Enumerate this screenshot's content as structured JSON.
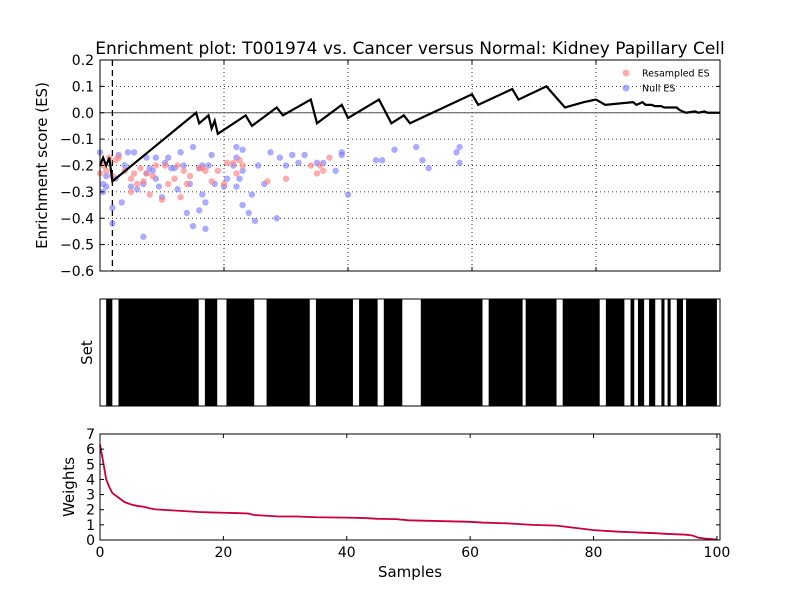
{
  "title": "Enrichment plot: T001974 vs. Cancer versus Normal: Kidney Papillary Cell",
  "colors": {
    "es_line": "#000000",
    "resampled": "#ff8080",
    "null": "#8080ff",
    "weights_line": "#c8003c",
    "set_bar": "#000000",
    "grid": "#000000"
  },
  "chart_data": [
    {
      "id": "enrichment",
      "type": "line",
      "ylabel": "Enrichment score (ES)",
      "xlim": [
        0,
        100
      ],
      "ylim": [
        -0.6,
        0.2
      ],
      "yticks": [
        "−0.6",
        "−0.5",
        "−0.4",
        "−0.3",
        "−0.2",
        "−0.1",
        "0.0",
        "0.1",
        "0.2"
      ],
      "ytick_values": [
        -0.6,
        -0.5,
        -0.4,
        -0.3,
        -0.2,
        -0.1,
        0.0,
        0.1,
        0.2
      ],
      "xtick_values": [
        0,
        20,
        40,
        60,
        80,
        100
      ],
      "grid": true,
      "zero_line": 0,
      "leading_edge_x": 2,
      "legend_position": "top-right",
      "legend": {
        "resampled": "Resampled ES",
        "null": "Null ES"
      },
      "es_points": [
        [
          0,
          -0.2
        ],
        [
          0.5,
          -0.17
        ],
        [
          1,
          -0.2
        ],
        [
          1.5,
          -0.17
        ],
        [
          2,
          -0.26
        ],
        [
          15.5,
          0.0
        ],
        [
          16,
          -0.04
        ],
        [
          17.5,
          -0.01
        ],
        [
          18,
          -0.06
        ],
        [
          18.5,
          -0.03
        ],
        [
          19,
          -0.08
        ],
        [
          23.5,
          -0.01
        ],
        [
          24.5,
          -0.05
        ],
        [
          28.5,
          0.02
        ],
        [
          29.5,
          -0.01
        ],
        [
          34,
          0.05
        ],
        [
          35,
          -0.04
        ],
        [
          39,
          0.03
        ],
        [
          40,
          -0.02
        ],
        [
          45,
          0.05
        ],
        [
          47,
          -0.04
        ],
        [
          49,
          -0.01
        ],
        [
          50,
          -0.04
        ],
        [
          60,
          0.07
        ],
        [
          61,
          0.03
        ],
        [
          66.5,
          0.09
        ],
        [
          67.5,
          0.05
        ],
        [
          72,
          0.1
        ],
        [
          75,
          0.02
        ],
        [
          78,
          0.04
        ],
        [
          80,
          0.05
        ],
        [
          81.5,
          0.03
        ],
        [
          86,
          0.04
        ],
        [
          86.5,
          0.03
        ],
        [
          87.5,
          0.04
        ],
        [
          88,
          0.03
        ],
        [
          89,
          0.03
        ],
        [
          89.5,
          0.025
        ],
        [
          90.5,
          0.025
        ],
        [
          91,
          0.02
        ],
        [
          93,
          0.02
        ],
        [
          93.5,
          0.01
        ],
        [
          94.5,
          0.0
        ],
        [
          96,
          0.005
        ],
        [
          96.5,
          0.0
        ],
        [
          97.5,
          0.005
        ],
        [
          98,
          0.0
        ],
        [
          100,
          0.0
        ]
      ],
      "resampled_es": [
        [
          0,
          -0.23
        ],
        [
          0.5,
          -0.2
        ],
        [
          1,
          -0.22
        ],
        [
          1.5,
          -0.17
        ],
        [
          2,
          -0.24
        ],
        [
          2.5,
          -0.18
        ],
        [
          3,
          -0.17
        ],
        [
          4,
          -0.22
        ],
        [
          5,
          -0.3
        ],
        [
          5,
          -0.25
        ],
        [
          5.5,
          -0.23
        ],
        [
          6,
          -0.27
        ],
        [
          6.5,
          -0.21
        ],
        [
          7,
          -0.26
        ],
        [
          7.5,
          -0.23
        ],
        [
          8,
          -0.31
        ],
        [
          8.5,
          -0.24
        ],
        [
          9,
          -0.2
        ],
        [
          10,
          -0.33
        ],
        [
          10.5,
          -0.2
        ],
        [
          11,
          -0.27
        ],
        [
          12,
          -0.25
        ],
        [
          12.5,
          -0.2
        ],
        [
          13,
          -0.32
        ],
        [
          13.5,
          -0.22
        ],
        [
          14,
          -0.27
        ],
        [
          14.5,
          -0.24
        ],
        [
          16,
          -0.21
        ],
        [
          16.5,
          -0.21
        ],
        [
          17,
          -0.22
        ],
        [
          18,
          -0.26
        ],
        [
          19,
          -0.22
        ],
        [
          20,
          -0.27
        ],
        [
          20.5,
          -0.19
        ],
        [
          21.5,
          -0.19
        ],
        [
          22,
          -0.23
        ],
        [
          22.5,
          -0.18
        ],
        [
          23,
          -0.2
        ],
        [
          27,
          -0.26
        ],
        [
          30,
          -0.25
        ],
        [
          34,
          -0.2
        ],
        [
          35,
          -0.23
        ],
        [
          35.5,
          -0.2
        ],
        [
          36,
          -0.22
        ],
        [
          37,
          -0.17
        ]
      ],
      "null_es": [
        [
          0,
          -0.15
        ],
        [
          0.5,
          -0.27
        ],
        [
          0.5,
          -0.3
        ],
        [
          1,
          -0.28
        ],
        [
          1,
          -0.24
        ],
        [
          2,
          -0.36
        ],
        [
          2,
          -0.42
        ],
        [
          2.5,
          -0.25
        ],
        [
          3,
          -0.16
        ],
        [
          3.5,
          -0.34
        ],
        [
          4,
          -0.2
        ],
        [
          4.5,
          -0.15
        ],
        [
          5,
          -0.28
        ],
        [
          5.5,
          -0.15
        ],
        [
          6,
          -0.29
        ],
        [
          7,
          -0.47
        ],
        [
          7,
          -0.27
        ],
        [
          7.5,
          -0.23
        ],
        [
          7.5,
          -0.17
        ],
        [
          8,
          -0.21
        ],
        [
          8.5,
          -0.22
        ],
        [
          9,
          -0.17
        ],
        [
          9,
          -0.25
        ],
        [
          9.5,
          -0.28
        ],
        [
          10,
          -0.32
        ],
        [
          10.5,
          -0.19
        ],
        [
          11,
          -0.17
        ],
        [
          11.5,
          -0.21
        ],
        [
          12,
          -0.21
        ],
        [
          12.5,
          -0.29
        ],
        [
          13,
          -0.15
        ],
        [
          13.5,
          -0.2
        ],
        [
          14,
          -0.38
        ],
        [
          14.5,
          -0.27
        ],
        [
          15,
          -0.43
        ],
        [
          15,
          -0.13
        ],
        [
          16,
          -0.37
        ],
        [
          16,
          -0.21
        ],
        [
          16.5,
          -0.2
        ],
        [
          16.5,
          -0.31
        ],
        [
          17,
          -0.34
        ],
        [
          17,
          -0.44
        ],
        [
          17.5,
          -0.2
        ],
        [
          18,
          -0.16
        ],
        [
          18.5,
          -0.27
        ],
        [
          20,
          -0.28
        ],
        [
          20.5,
          -0.25
        ],
        [
          21.5,
          -0.2
        ],
        [
          22,
          -0.13
        ],
        [
          22,
          -0.17
        ],
        [
          22,
          -0.28
        ],
        [
          22.5,
          -0.25
        ],
        [
          23,
          -0.35
        ],
        [
          23,
          -0.22
        ],
        [
          23,
          -0.14
        ],
        [
          24,
          -0.38
        ],
        [
          24.5,
          -0.31
        ],
        [
          25,
          -0.41
        ],
        [
          25.5,
          -0.2
        ],
        [
          26.5,
          -0.27
        ],
        [
          27.5,
          -0.15
        ],
        [
          28.5,
          -0.4
        ],
        [
          29,
          -0.17
        ],
        [
          30,
          -0.2
        ],
        [
          31,
          -0.16
        ],
        [
          32,
          -0.19
        ],
        [
          33,
          -0.16
        ],
        [
          35,
          -0.19
        ],
        [
          36,
          -0.19
        ],
        [
          38,
          -0.22
        ],
        [
          39,
          -0.16
        ],
        [
          39,
          -0.15
        ],
        [
          40,
          -0.31
        ],
        [
          44.5,
          -0.18
        ],
        [
          45.5,
          -0.18
        ],
        [
          47.5,
          -0.14
        ],
        [
          51,
          -0.13
        ],
        [
          52,
          -0.18
        ],
        [
          53,
          -0.21
        ],
        [
          57.5,
          -0.15
        ],
        [
          58,
          -0.19
        ],
        [
          58,
          -0.13
        ]
      ]
    },
    {
      "id": "set",
      "type": "bar",
      "ylabel": "Set",
      "xlim": [
        0,
        100.5
      ],
      "members": [
        [
          1,
          2
        ],
        [
          3,
          16
        ],
        [
          17,
          19
        ],
        [
          20.5,
          25
        ],
        [
          27,
          34
        ],
        [
          35,
          41
        ],
        [
          42,
          45
        ],
        [
          46,
          49
        ],
        [
          52,
          62
        ],
        [
          63,
          68.5
        ],
        [
          69,
          74
        ],
        [
          75,
          81
        ],
        [
          82,
          85
        ],
        [
          86,
          86.6
        ],
        [
          87.2,
          88.2
        ],
        [
          89,
          90
        ],
        [
          91,
          91.5
        ],
        [
          92,
          92.5
        ],
        [
          93.5,
          94.5
        ],
        [
          95,
          100
        ]
      ]
    },
    {
      "id": "weights",
      "type": "line",
      "xlabel": "Samples",
      "ylabel": "Weights",
      "xlim": [
        0,
        100.5
      ],
      "ylim": [
        0,
        7
      ],
      "yticks": [
        "0",
        "1",
        "2",
        "3",
        "4",
        "5",
        "6",
        "7"
      ],
      "xticks": [
        "0",
        "20",
        "40",
        "60",
        "80",
        "100"
      ],
      "xtick_values": [
        0,
        20,
        40,
        60,
        80,
        100
      ],
      "weights": [
        [
          0,
          6.3
        ],
        [
          0.5,
          5.2
        ],
        [
          1,
          4.0
        ],
        [
          1.5,
          3.5
        ],
        [
          2,
          3.1
        ],
        [
          3,
          2.8
        ],
        [
          4,
          2.5
        ],
        [
          5,
          2.35
        ],
        [
          6,
          2.25
        ],
        [
          7,
          2.2
        ],
        [
          8,
          2.1
        ],
        [
          9,
          2.02
        ],
        [
          10,
          2.0
        ],
        [
          12,
          1.95
        ],
        [
          14,
          1.9
        ],
        [
          16,
          1.85
        ],
        [
          18,
          1.82
        ],
        [
          20,
          1.8
        ],
        [
          22,
          1.78
        ],
        [
          24,
          1.75
        ],
        [
          25,
          1.65
        ],
        [
          27,
          1.6
        ],
        [
          29,
          1.55
        ],
        [
          32,
          1.55
        ],
        [
          35,
          1.5
        ],
        [
          40,
          1.48
        ],
        [
          43,
          1.45
        ],
        [
          45,
          1.4
        ],
        [
          48,
          1.38
        ],
        [
          50,
          1.3
        ],
        [
          55,
          1.25
        ],
        [
          60,
          1.2
        ],
        [
          62,
          1.15
        ],
        [
          66,
          1.1
        ],
        [
          70,
          1.0
        ],
        [
          74,
          0.95
        ],
        [
          76,
          0.85
        ],
        [
          78,
          0.75
        ],
        [
          80,
          0.65
        ],
        [
          84,
          0.55
        ],
        [
          87,
          0.5
        ],
        [
          90,
          0.45
        ],
        [
          92,
          0.4
        ],
        [
          95,
          0.35
        ],
        [
          96,
          0.3
        ],
        [
          97,
          0.15
        ],
        [
          98,
          0.1
        ],
        [
          99.5,
          0.05
        ],
        [
          100,
          0.03
        ]
      ]
    }
  ]
}
